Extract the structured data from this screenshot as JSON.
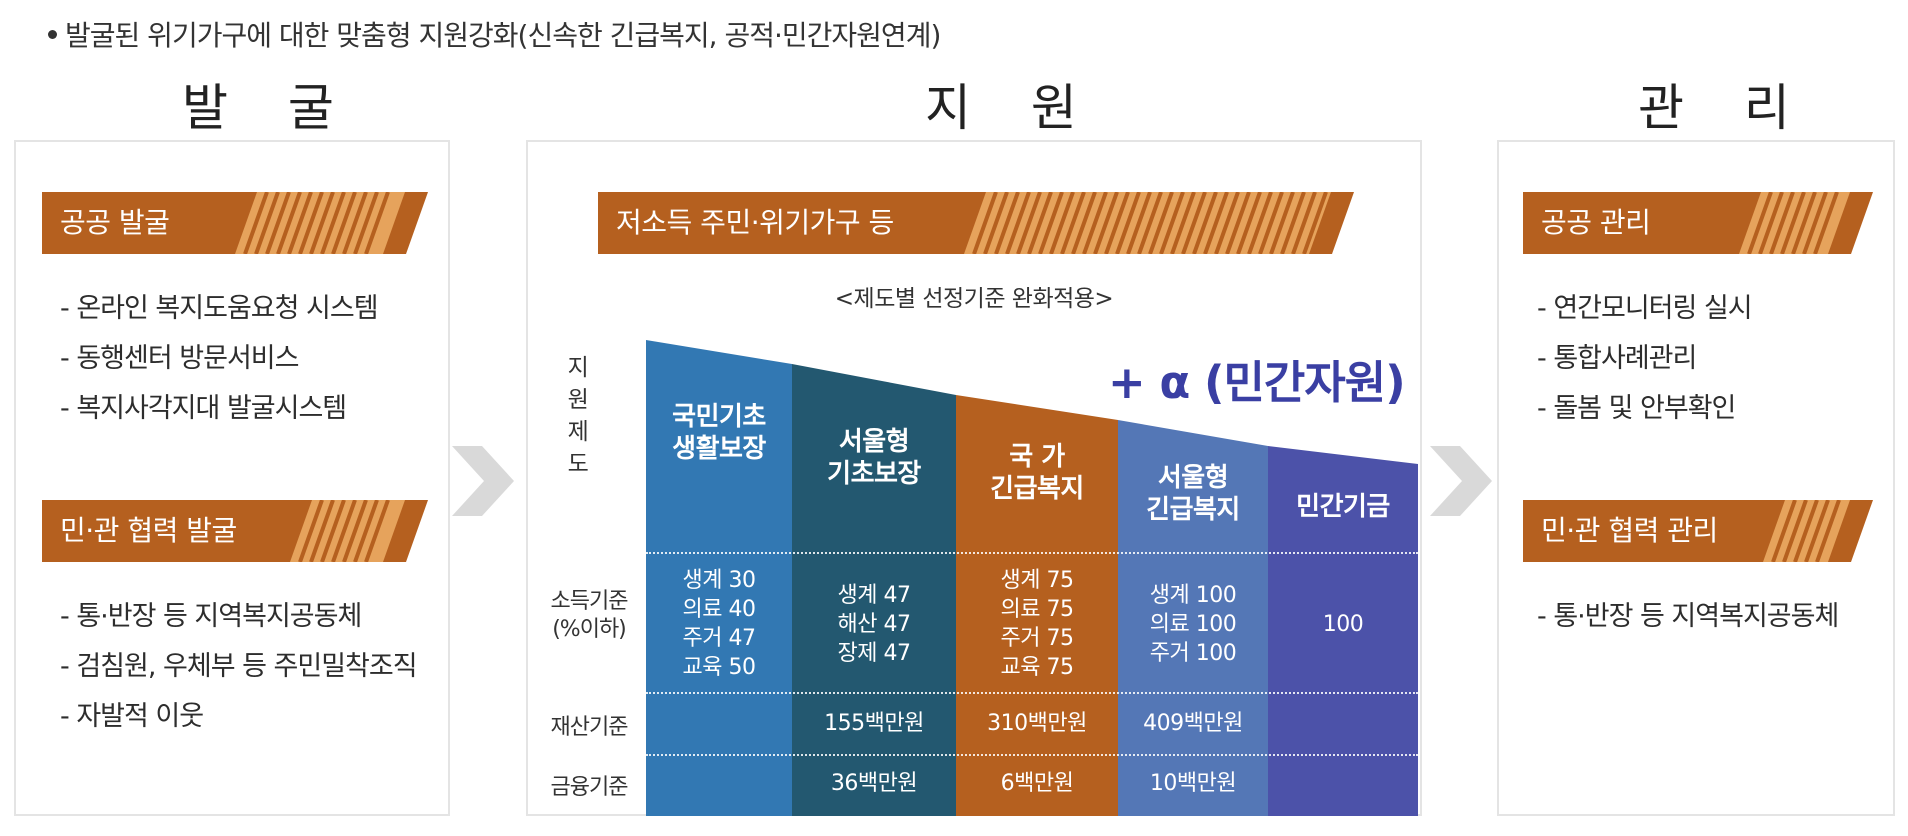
{
  "intro": "발굴된 위기가구에 대한 맞춤형 지원강화(신속한 긴급복지, 공적·민간자원연계)",
  "columns": {
    "discover": {
      "title": "발 굴",
      "banners": [
        "공공 발굴",
        "민·관 협력 발굴"
      ],
      "list1": [
        "- 온라인 복지도움요청 시스템",
        "- 동행센터 방문서비스",
        "- 복지사각지대 발굴시스템"
      ],
      "list2": [
        "- 통·반장 등 지역복지공동체",
        "- 검침원, 우체부 등 주민밀착조직",
        "- 자발적 이웃"
      ]
    },
    "support": {
      "title": "지 원",
      "banner": "저소득 주민·위기가구 등",
      "subtitle": "<제도별 선정기준 완화적용>",
      "plus_alpha": "+ α (민간자원)",
      "side_label": [
        "지",
        "원",
        "제",
        "도"
      ],
      "row_labels": {
        "income": "소득기준\n(%이하)",
        "property": "재산기준",
        "finance": "금융기준"
      },
      "systems": [
        {
          "name": "국민기초\n생활보장",
          "income": "생계 30\n의료 40\n주거 47\n교육 50",
          "property": "",
          "finance": "",
          "color": "#3278b3"
        },
        {
          "name": "서울형\n기초보장",
          "income": "생계 47\n해산 47\n장제 47",
          "property": "155백만원",
          "finance": "36백만원",
          "color": "#235870"
        },
        {
          "name": "국  가\n긴급복지",
          "income": "생계 75\n의료 75\n주거 75\n교육 75",
          "property": "310백만원",
          "finance": "6백만원",
          "color": "#b5601f"
        },
        {
          "name": "서울형\n긴급복지",
          "income": "생계 100\n의료 100\n주거 100",
          "property": "409백만원",
          "finance": "10백만원",
          "color": "#5477b6"
        },
        {
          "name": "민간기금",
          "income": "100",
          "property": "",
          "finance": "",
          "color": "#4c52a9"
        }
      ]
    },
    "manage": {
      "title": "관 리",
      "banners": [
        "공공 관리",
        "민·관 협력 관리"
      ],
      "list1": [
        "- 연간모니터링 실시",
        "- 통합사례관리",
        "- 돌봄 및 안부확인"
      ],
      "list2": [
        "- 통·반장 등 지역복지공동체"
      ]
    }
  },
  "colors": {
    "banner": "#b5601f",
    "banner_stripe": "#e6a35c",
    "accent": "#3a3fa3",
    "arrow": "#d9d9d9"
  },
  "icons": {
    "flow_arrow": "chevron-right-icon",
    "bullet": "bullet-dot-icon"
  }
}
